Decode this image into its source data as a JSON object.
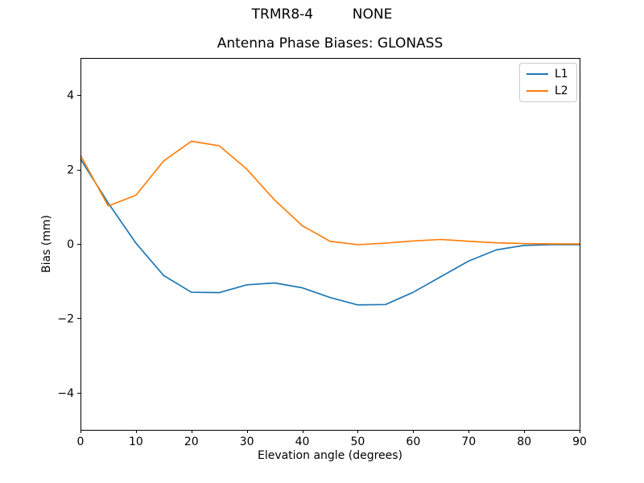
{
  "figure": {
    "suptitle": "TRMR8-4         NONE",
    "title": "Antenna Phase Biases: GLONASS"
  },
  "chart_data": {
    "type": "line",
    "suptitle": "TRMR8-4         NONE",
    "title": "Antenna Phase Biases: GLONASS",
    "xlabel": "Elevation angle (degrees)",
    "ylabel": "Bias (mm)",
    "xlim": [
      0,
      90
    ],
    "ylim": [
      -5,
      5
    ],
    "xticks": [
      0,
      10,
      20,
      30,
      40,
      50,
      60,
      70,
      80,
      90
    ],
    "xtick_labels": [
      "0",
      "10",
      "20",
      "30",
      "40",
      "50",
      "60",
      "70",
      "80",
      "90"
    ],
    "yticks": [
      -4,
      -2,
      0,
      2,
      4
    ],
    "ytick_labels": [
      "−4",
      "−2",
      "0",
      "2",
      "4"
    ],
    "grid": false,
    "legend_position": "upper right",
    "x": [
      0,
      5,
      10,
      15,
      20,
      25,
      30,
      35,
      40,
      45,
      50,
      55,
      60,
      65,
      70,
      75,
      80,
      85,
      90
    ],
    "series": [
      {
        "name": "L1",
        "color": "#1f77b4",
        "values": [
          2.28,
          1.1,
          0.02,
          -0.85,
          -1.3,
          -1.31,
          -1.1,
          -1.05,
          -1.18,
          -1.44,
          -1.64,
          -1.63,
          -1.3,
          -0.88,
          -0.46,
          -0.16,
          -0.04,
          -0.02,
          -0.02
        ]
      },
      {
        "name": "L2",
        "color": "#ff7f0e",
        "values": [
          2.38,
          1.02,
          1.31,
          2.23,
          2.76,
          2.64,
          2.01,
          1.18,
          0.49,
          0.07,
          -0.02,
          0.02,
          0.08,
          0.12,
          0.07,
          0.03,
          0.01,
          0.0,
          0.0
        ]
      }
    ]
  }
}
